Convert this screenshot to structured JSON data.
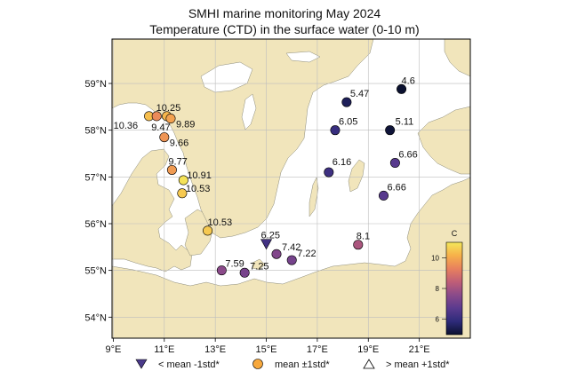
{
  "title_line1": "SMHI marine monitoring May 2024",
  "title_line2": "Temperature (CTD) in the surface water (0-10 m)",
  "colors": {
    "land": "#f1e5bb",
    "sea": "#ffffff",
    "grid": "#bdbdbd",
    "colormap": [
      "#0b1130",
      "#2e2b7a",
      "#5a3a8e",
      "#8a4a8a",
      "#bf5e77",
      "#e8805e",
      "#f7b04a",
      "#f4e85a"
    ]
  },
  "axes": {
    "lon_ticks": [
      "9°E",
      "11°E",
      "13°E",
      "15°E",
      "17°E",
      "19°E",
      "21°E"
    ],
    "lat_ticks": [
      "54°N",
      "55°N",
      "56°N",
      "57°N",
      "58°N",
      "59°N"
    ]
  },
  "colorbar": {
    "label": "C",
    "ticks": [
      "6",
      "8",
      "10"
    ],
    "range": [
      5,
      11
    ]
  },
  "chart_data": {
    "type": "scatter",
    "title": "SMHI marine monitoring May 2024",
    "subtitle": "Temperature (CTD) in the surface water (0-10 m)",
    "xlabel": "",
    "ylabel": "",
    "xlim": [
      9,
      23
    ],
    "ylim": [
      53.5,
      60
    ],
    "points": [
      {
        "lon": 10.4,
        "lat": 58.3,
        "value": 10.36,
        "label": "10.36",
        "symbol": "circle"
      },
      {
        "lon": 10.7,
        "lat": 58.3,
        "value": 9.47,
        "label": "9.47",
        "symbol": "circle"
      },
      {
        "lon": 11.1,
        "lat": 58.3,
        "value": 10.25,
        "label": "10.25",
        "symbol": "circle"
      },
      {
        "lon": 11.25,
        "lat": 58.25,
        "value": 9.89,
        "label": "9.89",
        "symbol": "circle"
      },
      {
        "lon": 11.0,
        "lat": 57.85,
        "value": 9.66,
        "label": "9.66",
        "symbol": "circle"
      },
      {
        "lon": 11.3,
        "lat": 57.15,
        "value": 9.77,
        "label": "9.77",
        "symbol": "circle"
      },
      {
        "lon": 11.75,
        "lat": 56.93,
        "value": 10.91,
        "label": "10.91",
        "symbol": "circle"
      },
      {
        "lon": 11.7,
        "lat": 56.65,
        "value": 10.53,
        "label": "10.53",
        "symbol": "circle"
      },
      {
        "lon": 12.7,
        "lat": 55.85,
        "value": 10.53,
        "label": "10.53",
        "symbol": "circle"
      },
      {
        "lon": 13.25,
        "lat": 55.0,
        "value": 7.59,
        "label": "7.59",
        "symbol": "circle"
      },
      {
        "lon": 14.15,
        "lat": 54.95,
        "value": 7.25,
        "label": "7.25",
        "symbol": "circle"
      },
      {
        "lon": 15.0,
        "lat": 55.57,
        "value": 6.25,
        "label": "6.25",
        "symbol": "triangle-down"
      },
      {
        "lon": 15.4,
        "lat": 55.35,
        "value": 7.42,
        "label": "7.42",
        "symbol": "circle"
      },
      {
        "lon": 16.0,
        "lat": 55.22,
        "value": 7.22,
        "label": "7.22",
        "symbol": "circle"
      },
      {
        "lon": 18.6,
        "lat": 55.55,
        "value": 8.1,
        "label": "8.1",
        "symbol": "circle"
      },
      {
        "lon": 18.15,
        "lat": 58.6,
        "value": 5.47,
        "label": "5.47",
        "symbol": "circle"
      },
      {
        "lon": 17.7,
        "lat": 58.0,
        "value": 6.05,
        "label": "6.05",
        "symbol": "circle"
      },
      {
        "lon": 17.45,
        "lat": 57.1,
        "value": 6.16,
        "label": "6.16",
        "symbol": "circle"
      },
      {
        "lon": 20.3,
        "lat": 58.88,
        "value": 4.6,
        "label": "4.6",
        "symbol": "circle"
      },
      {
        "lon": 19.85,
        "lat": 58.0,
        "value": 5.11,
        "label": "5.11",
        "symbol": "circle"
      },
      {
        "lon": 20.05,
        "lat": 57.3,
        "value": 6.66,
        "label": "6.66",
        "symbol": "circle"
      },
      {
        "lon": 19.6,
        "lat": 56.6,
        "value": 6.66,
        "label": "6.66",
        "symbol": "circle"
      }
    ]
  },
  "legend": {
    "below": "< mean -1std*",
    "within": "mean ±1std*",
    "above": "> mean +1std*"
  }
}
